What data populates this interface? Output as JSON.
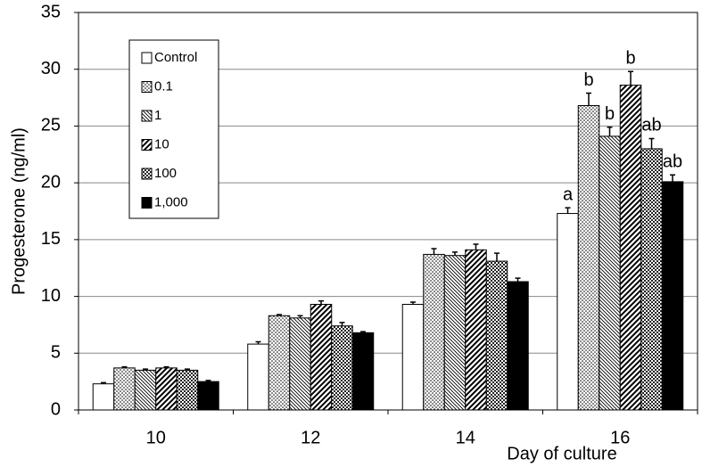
{
  "chart_data": {
    "type": "bar",
    "y_label": "Progesterone (ng/ml)",
    "x_label": "Day of culture",
    "categories": [
      "10",
      "12",
      "14",
      "16"
    ],
    "ylim": [
      0,
      35
    ],
    "yticks": [
      0,
      5,
      10,
      15,
      20,
      25,
      30,
      35
    ],
    "grid": true,
    "legend": "upper left",
    "series": [
      {
        "name": "Control",
        "color": "#ffffff",
        "pattern": "none",
        "values": [
          2.3,
          5.8,
          9.3,
          17.3
        ],
        "errors": [
          0.1,
          0.2,
          0.2,
          0.5
        ],
        "labels": [
          null,
          null,
          null,
          "a"
        ]
      },
      {
        "name": "0.1",
        "color": "#ffffff",
        "pattern": "dots",
        "values": [
          3.7,
          8.3,
          13.7,
          26.8
        ],
        "errors": [
          0.1,
          0.1,
          0.5,
          1.1
        ],
        "labels": [
          null,
          null,
          null,
          "b"
        ]
      },
      {
        "name": "1",
        "color": "#ffffff",
        "pattern": "back-diagonal",
        "values": [
          3.5,
          8.1,
          13.6,
          24.1
        ],
        "errors": [
          0.1,
          0.2,
          0.3,
          0.8
        ],
        "labels": [
          null,
          null,
          null,
          "b"
        ]
      },
      {
        "name": "10",
        "color": "#ffffff",
        "pattern": "diagonal",
        "values": [
          3.7,
          9.3,
          14.1,
          28.6
        ],
        "errors": [
          0.1,
          0.3,
          0.5,
          1.2
        ],
        "labels": [
          null,
          null,
          null,
          "b"
        ]
      },
      {
        "name": "100",
        "color": "#ffffff",
        "pattern": "crosshatch",
        "values": [
          3.5,
          7.4,
          13.1,
          23.0
        ],
        "errors": [
          0.1,
          0.3,
          0.7,
          0.9
        ],
        "labels": [
          null,
          null,
          null,
          "ab"
        ]
      },
      {
        "name": "1,000",
        "color": "#000000",
        "pattern": "none",
        "values": [
          2.5,
          6.8,
          11.3,
          20.1
        ],
        "errors": [
          0.1,
          0.1,
          0.3,
          0.6
        ],
        "labels": [
          null,
          null,
          null,
          "ab"
        ]
      }
    ]
  }
}
